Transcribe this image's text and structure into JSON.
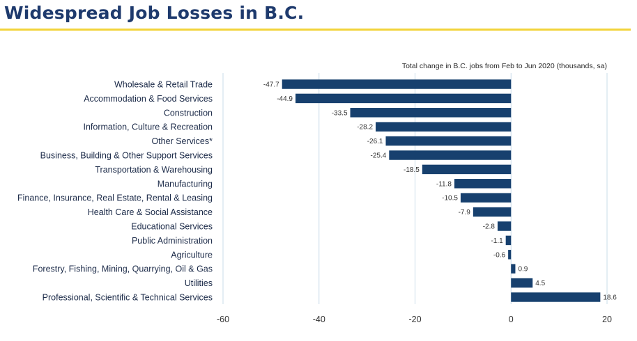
{
  "page": {
    "title": "Widespread Job Losses in B.C.",
    "accent_color": "#f2d33a",
    "title_color": "#1e3a6d"
  },
  "chart_data": {
    "type": "bar",
    "orientation": "horizontal",
    "subtitle": "Total change in B.C. jobs from Feb to Jun 2020 (thousands, sa)",
    "bar_color": "#17406e",
    "categories": [
      "Wholesale & Retail Trade",
      "Accommodation & Food Services",
      "Construction",
      "Information, Culture & Recreation",
      "Other Services*",
      "Business, Building & Other Support Services",
      "Transportation & Warehousing",
      "Manufacturing",
      "Finance, Insurance, Real Estate, Rental & Leasing",
      "Health Care & Social Assistance",
      "Educational Services",
      "Public Administration",
      "Agriculture",
      "Forestry, Fishing, Mining, Quarrying, Oil & Gas",
      "Utilities",
      "Professional, Scientific & Technical Services"
    ],
    "values": [
      -47.7,
      -44.9,
      -33.5,
      -28.2,
      -26.1,
      -25.4,
      -18.5,
      -11.8,
      -10.5,
      -7.9,
      -2.8,
      -1.1,
      -0.6,
      0.9,
      4.5,
      18.6
    ],
    "xlim": [
      -60,
      20
    ],
    "xticks": [
      -60,
      -40,
      -20,
      0,
      20
    ],
    "grid": "vertical"
  }
}
